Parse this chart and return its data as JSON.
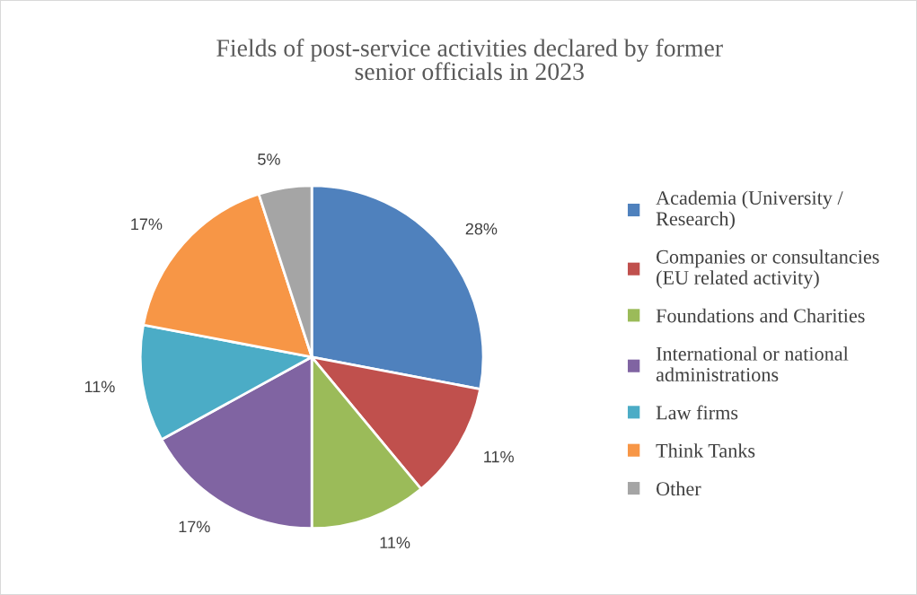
{
  "chart_data": {
    "type": "pie",
    "title": "Fields of post-service activities declared by former senior officials in 2023",
    "categories": [
      "Academia (University / Research)",
      "Companies or consultancies (EU related activity)",
      "Foundations and Charities",
      "International or national administrations",
      "Law firms",
      "Think Tanks",
      "Other"
    ],
    "values": [
      28,
      11,
      11,
      17,
      11,
      17,
      5
    ],
    "colors": [
      "#4f81bd",
      "#c0504d",
      "#9bbb59",
      "#8064a2",
      "#4bacc6",
      "#f79646",
      "#a5a5a5"
    ],
    "value_labels": [
      "28%",
      "11%",
      "11%",
      "17%",
      "11%",
      "17%",
      "5%"
    ],
    "legend": "right"
  }
}
